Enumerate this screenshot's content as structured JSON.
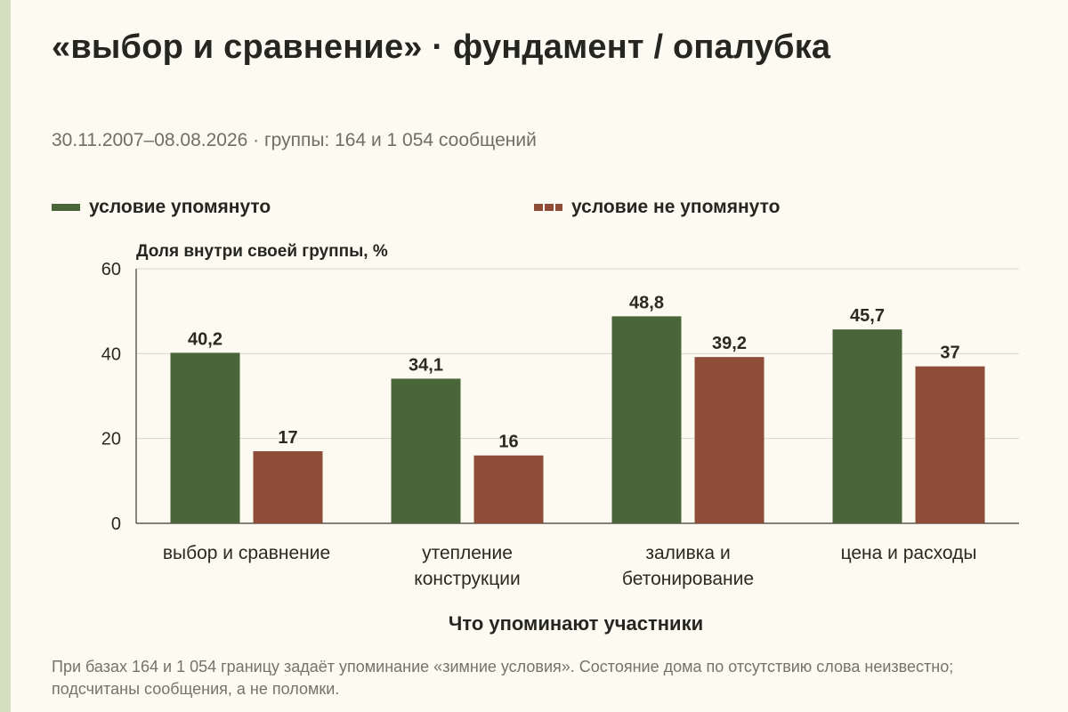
{
  "title": "«выбор и сравнение» · фундамент / опалубка",
  "subtitle": "30.11.2007–08.08.2026 · группы: 164 и 1 054 сообщений",
  "legend": {
    "mentioned": "условие упомянуто",
    "not_mentioned": "условие не упомянуто"
  },
  "footnote": "При базах 164 и 1 054 границу задаёт упоминание «зимние условия». Состояние дома по отсутствию слова неизвестно; подсчитаны сообщения, а не поломки.",
  "colors": {
    "mentioned": "#4a6539",
    "not_mentioned": "#8f4c38",
    "grid": "#d9d7cc",
    "axis": "#3a3a32"
  },
  "chart_data": {
    "type": "bar",
    "ylabel": "Доля внутри своей группы, %",
    "xlabel": "Что упоминают участники",
    "ylim": [
      0,
      60
    ],
    "yticks": [
      0,
      20,
      40,
      60
    ],
    "grid": true,
    "legend_position": "top",
    "categories": [
      [
        "выбор и сравнение"
      ],
      [
        "утепление",
        "конструкции"
      ],
      [
        "заливка и",
        "бетонирование"
      ],
      [
        "цена и расходы"
      ]
    ],
    "series": [
      {
        "name": "условие упомянуто",
        "values": [
          40.2,
          34.1,
          48.8,
          45.7
        ],
        "labels": [
          "40,2",
          "34,1",
          "48,8",
          "45,7"
        ]
      },
      {
        "name": "условие не упомянуто",
        "values": [
          17,
          16,
          39.2,
          37
        ],
        "labels": [
          "17",
          "16",
          "39,2",
          "37"
        ]
      }
    ]
  }
}
